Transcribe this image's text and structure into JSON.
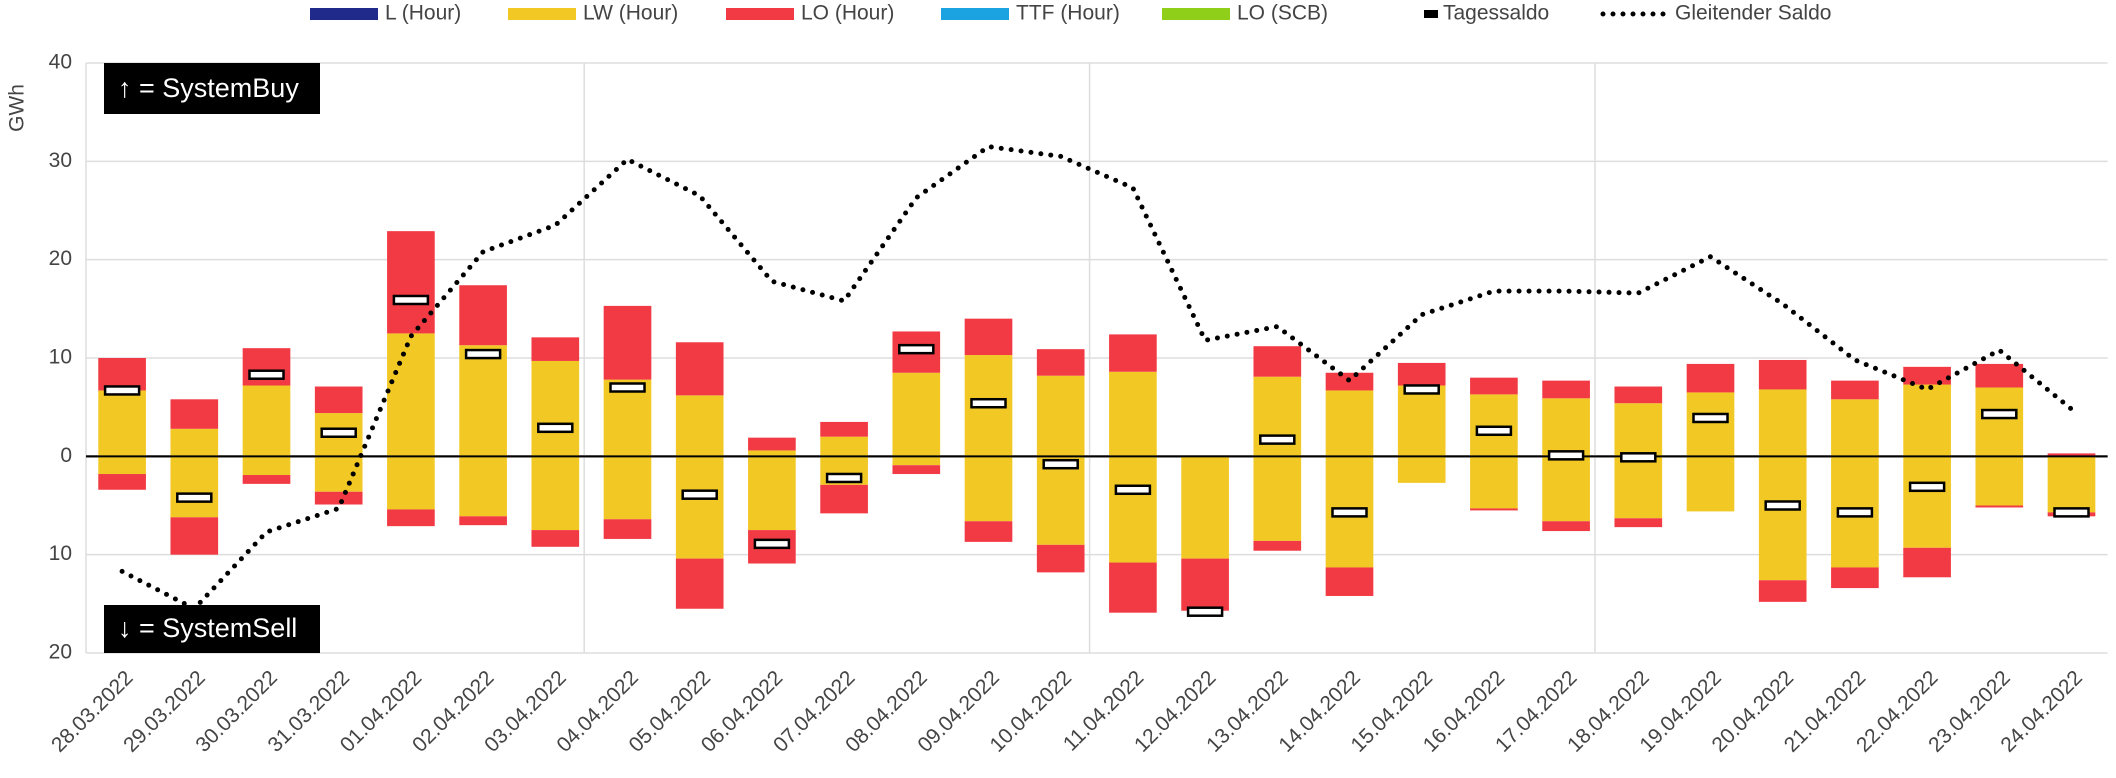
{
  "chart_data": {
    "type": "bar",
    "y_label": "GWh",
    "annotations": [
      "↑ = SystemBuy",
      "↓ = SystemSell"
    ],
    "categories": [
      "28.03.2022",
      "29.03.2022",
      "30.03.2022",
      "31.03.2022",
      "01.04.2022",
      "02.04.2022",
      "03.04.2022",
      "04.04.2022",
      "05.04.2022",
      "06.04.2022",
      "07.04.2022",
      "08.04.2022",
      "09.04.2022",
      "10.04.2022",
      "11.04.2022",
      "12.04.2022",
      "13.04.2022",
      "14.04.2022",
      "15.04.2022",
      "16.04.2022",
      "17.04.2022",
      "18.04.2022",
      "19.04.2022",
      "20.04.2022",
      "21.04.2022",
      "22.04.2022",
      "23.04.2022",
      "24.04.2022"
    ],
    "ylim": [
      -20,
      40
    ],
    "yticks": [
      {
        "value": -20,
        "label": "20"
      },
      {
        "value": -10,
        "label": "10"
      },
      0,
      10,
      20,
      30,
      40
    ],
    "grid": true,
    "series": [
      {
        "name": "L (Hour)",
        "color": "#1f2a8a",
        "kind": "bar"
      },
      {
        "name": "LW (Hour)",
        "color": "#f2c924",
        "kind": "bar",
        "values": [
          6.7,
          2.8,
          7.2,
          4.4,
          12.5,
          11.3,
          9.7,
          7.8,
          6.2,
          0.6,
          2.0,
          8.5,
          10.3,
          8.2,
          8.6,
          0,
          8.1,
          6.7,
          7.2,
          6.3,
          5.9,
          5.4,
          6.5,
          6.8,
          5.8,
          7.3,
          7.0,
          0
        ],
        "values_sell": [
          -1.8,
          -6.2,
          -1.9,
          -3.6,
          -5.4,
          -6.1,
          -7.5,
          -6.4,
          -10.4,
          -7.5,
          -2.9,
          -0.9,
          -6.6,
          -9.0,
          -10.8,
          -10.4,
          -8.6,
          -11.3,
          -2.7,
          -5.3,
          -6.6,
          -6.3,
          -5.6,
          -12.6,
          -11.3,
          -9.3,
          -5.0,
          -5.7
        ]
      },
      {
        "name": "LO (Hour)",
        "color": "#f23a44",
        "kind": "bar",
        "values": [
          3.3,
          3.0,
          3.8,
          2.7,
          10.4,
          6.1,
          2.4,
          7.5,
          5.4,
          1.3,
          1.5,
          4.2,
          3.7,
          2.7,
          3.8,
          0,
          3.1,
          1.8,
          2.3,
          1.7,
          1.8,
          1.7,
          2.9,
          3.0,
          1.9,
          1.8,
          2.4,
          0.3
        ],
        "values_sell": [
          -1.6,
          -3.8,
          -0.9,
          -1.3,
          -1.7,
          -0.9,
          -1.7,
          -2.0,
          -5.1,
          -3.4,
          -2.9,
          -0.9,
          -2.1,
          -2.8,
          -5.1,
          -5.3,
          -1.0,
          -2.9,
          0,
          -0.2,
          -1.0,
          -0.9,
          0,
          -2.2,
          -2.1,
          -3.0,
          -0.2,
          -0.4
        ]
      },
      {
        "name": "TTF (Hour)",
        "color": "#1aa3e0",
        "kind": "bar"
      },
      {
        "name": "LO (SCB)",
        "color": "#8fcf1a",
        "kind": "bar"
      },
      {
        "name": "Tagessaldo",
        "color": "#000000",
        "kind": "marker",
        "values": [
          6.7,
          -4.2,
          8.3,
          2.4,
          15.9,
          10.4,
          2.9,
          7.0,
          -3.9,
          -8.9,
          -2.2,
          10.9,
          5.4,
          -0.8,
          -3.4,
          -15.8,
          1.7,
          -5.7,
          6.8,
          2.6,
          0.1,
          -0.1,
          3.9,
          -5.0,
          -5.7,
          -3.1,
          4.3,
          -5.7
        ]
      },
      {
        "name": "Gleitender Saldo",
        "color": "#000000",
        "kind": "line",
        "values": [
          -11.7,
          -15.5,
          -7.7,
          -5.3,
          12.2,
          20.8,
          23.5,
          30.2,
          26.5,
          17.8,
          15.8,
          26.3,
          31.5,
          30.5,
          27.3,
          11.8,
          13.2,
          7.7,
          14.4,
          16.8,
          16.8,
          16.6,
          20.3,
          15.5,
          9.8,
          6.8,
          10.8,
          4.8
        ]
      }
    ]
  }
}
